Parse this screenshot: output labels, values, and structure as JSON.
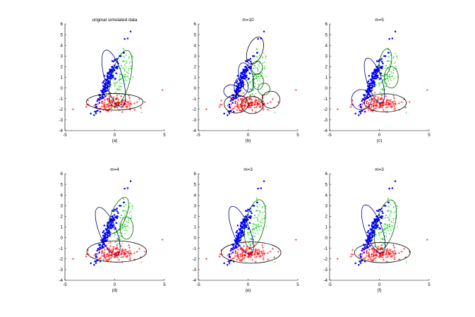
{
  "chart_data": [
    {
      "type": "scatter",
      "title": "original simulated data",
      "caption": "(a)",
      "xlim": [
        -5,
        5
      ],
      "ylim": [
        -4,
        6
      ],
      "xticks": [
        -5,
        0,
        5
      ],
      "yticks": [
        -4,
        -3,
        -2,
        -1,
        0,
        1,
        2,
        3,
        4,
        5,
        6
      ],
      "ellipses": [
        {
          "cx": -0.1,
          "cy": 0.9,
          "rx": 0.9,
          "ry": 2.75,
          "angle": -16,
          "color": "#000080"
        },
        {
          "cx": 0.6,
          "cy": 0.9,
          "rx": 0.95,
          "ry": 2.7,
          "angle": 14,
          "color": "#006400"
        },
        {
          "cx": 0.0,
          "cy": -1.3,
          "rx": 2.85,
          "ry": 0.78,
          "angle": 0,
          "color": "#000000"
        }
      ]
    },
    {
      "type": "scatter",
      "title": "m=10",
      "caption": "(b)",
      "xlim": [
        -5,
        5
      ],
      "ylim": [
        -4,
        6
      ],
      "xticks": [
        -5,
        0,
        5
      ],
      "yticks": [
        -4,
        -3,
        -2,
        -1,
        0,
        1,
        2,
        3,
        4,
        5,
        6
      ],
      "ellipses": [
        {
          "cx": 0.7,
          "cy": 3.5,
          "rx": 0.75,
          "ry": 1.35,
          "angle": 20,
          "color": "#000000"
        },
        {
          "cx": -0.2,
          "cy": 1.0,
          "rx": 0.7,
          "ry": 1.4,
          "angle": -15,
          "color": "#000080"
        },
        {
          "cx": 0.9,
          "cy": 1.9,
          "rx": 0.55,
          "ry": 0.6,
          "angle": 0,
          "color": "#006400"
        },
        {
          "cx": 1.0,
          "cy": 0.6,
          "rx": 0.55,
          "ry": 0.75,
          "angle": 0,
          "color": "#006400"
        },
        {
          "cx": 1.6,
          "cy": -0.1,
          "rx": 0.6,
          "ry": 0.55,
          "angle": 0,
          "color": "#006400"
        },
        {
          "cx": -1.7,
          "cy": -0.3,
          "rx": 0.75,
          "ry": 0.6,
          "angle": 0,
          "color": "#000080"
        },
        {
          "cx": -0.7,
          "cy": 0.1,
          "rx": 0.7,
          "ry": 0.9,
          "angle": 0,
          "color": "#000080"
        },
        {
          "cx": -1.2,
          "cy": -1.5,
          "rx": 1.2,
          "ry": 0.85,
          "angle": 0,
          "color": "#000000"
        },
        {
          "cx": 0.4,
          "cy": -1.6,
          "rx": 1.1,
          "ry": 0.8,
          "angle": 0,
          "color": "#000000"
        },
        {
          "cx": 2.3,
          "cy": -1.1,
          "rx": 0.9,
          "ry": 0.8,
          "angle": 0,
          "color": "#000000"
        }
      ]
    },
    {
      "type": "scatter",
      "title": "m=5",
      "caption": "(c)",
      "xlim": [
        -5,
        5
      ],
      "ylim": [
        -4,
        6
      ],
      "xticks": [
        -5,
        0,
        5
      ],
      "yticks": [
        -4,
        -3,
        -2,
        -1,
        0,
        1,
        2,
        3,
        4,
        5,
        6
      ],
      "ellipses": [
        {
          "cx": 0.6,
          "cy": 2.4,
          "rx": 0.6,
          "ry": 1.3,
          "angle": 10,
          "color": "#006400"
        },
        {
          "cx": 1.2,
          "cy": 1.0,
          "rx": 0.7,
          "ry": 1.0,
          "angle": 0,
          "color": "#006400"
        },
        {
          "cx": -0.5,
          "cy": 0.7,
          "rx": 0.75,
          "ry": 2.2,
          "angle": -18,
          "color": "#000080"
        },
        {
          "cx": -1.8,
          "cy": -1.1,
          "rx": 1.0,
          "ry": 0.95,
          "angle": 0,
          "color": "#000080"
        },
        {
          "cx": 0.6,
          "cy": -1.4,
          "rx": 2.1,
          "ry": 0.85,
          "angle": 0,
          "color": "#000000"
        }
      ]
    },
    {
      "type": "scatter",
      "title": "m=4",
      "caption": "(d)",
      "xlim": [
        -5,
        5
      ],
      "ylim": [
        -4,
        6
      ],
      "xticks": [
        -5,
        0,
        5
      ],
      "yticks": [
        -4,
        -3,
        -2,
        -1,
        0,
        1,
        2,
        3,
        4,
        5,
        6
      ],
      "ellipses": [
        {
          "cx": 0.4,
          "cy": 2.1,
          "rx": 0.75,
          "ry": 1.8,
          "angle": 22,
          "color": "#006400"
        },
        {
          "cx": 1.2,
          "cy": 0.9,
          "rx": 0.65,
          "ry": 1.05,
          "angle": 0,
          "color": "#006400"
        },
        {
          "cx": -0.7,
          "cy": 0.6,
          "rx": 0.85,
          "ry": 2.4,
          "angle": -22,
          "color": "#000080"
        },
        {
          "cx": 0.2,
          "cy": -1.3,
          "rx": 3.0,
          "ry": 1.0,
          "angle": 0,
          "color": "#000000"
        }
      ]
    },
    {
      "type": "scatter",
      "title": "m=3",
      "caption": "(e)",
      "xlim": [
        -5,
        5
      ],
      "ylim": [
        -4,
        6
      ],
      "xticks": [
        -5,
        0,
        5
      ],
      "yticks": [
        -4,
        -3,
        -2,
        -1,
        0,
        1,
        2,
        3,
        4,
        5,
        6
      ],
      "ellipses": [
        {
          "cx": 0.7,
          "cy": 1.3,
          "rx": 0.95,
          "ry": 2.3,
          "angle": 12,
          "color": "#006400"
        },
        {
          "cx": -0.7,
          "cy": 0.7,
          "rx": 0.85,
          "ry": 2.4,
          "angle": -22,
          "color": "#000080"
        },
        {
          "cx": 0.3,
          "cy": -1.4,
          "rx": 3.0,
          "ry": 1.0,
          "angle": 0,
          "color": "#000000"
        }
      ]
    },
    {
      "type": "scatter",
      "title": "m=3",
      "caption": "(f)",
      "xlim": [
        -5,
        5
      ],
      "ylim": [
        -4,
        6
      ],
      "xticks": [
        -5,
        0,
        5
      ],
      "yticks": [
        -4,
        -3,
        -2,
        -1,
        0,
        1,
        2,
        3,
        4,
        5,
        6
      ],
      "ellipses": [
        {
          "cx": 0.6,
          "cy": 1.2,
          "rx": 0.95,
          "ry": 2.4,
          "angle": 14,
          "color": "#006400"
        },
        {
          "cx": -0.6,
          "cy": 0.8,
          "rx": 0.85,
          "ry": 2.4,
          "angle": -20,
          "color": "#000080"
        },
        {
          "cx": 0.3,
          "cy": -1.4,
          "rx": 2.8,
          "ry": 0.95,
          "angle": 0,
          "color": "#000000"
        }
      ]
    }
  ],
  "series_colors": {
    "cluster_blue": "#0000ff",
    "cluster_green": "#00cc00",
    "cluster_red": "#ff0000"
  },
  "series_markers": {
    "cluster_blue": "filled-dot",
    "cluster_green": "small-dot",
    "cluster_red": "plus"
  }
}
